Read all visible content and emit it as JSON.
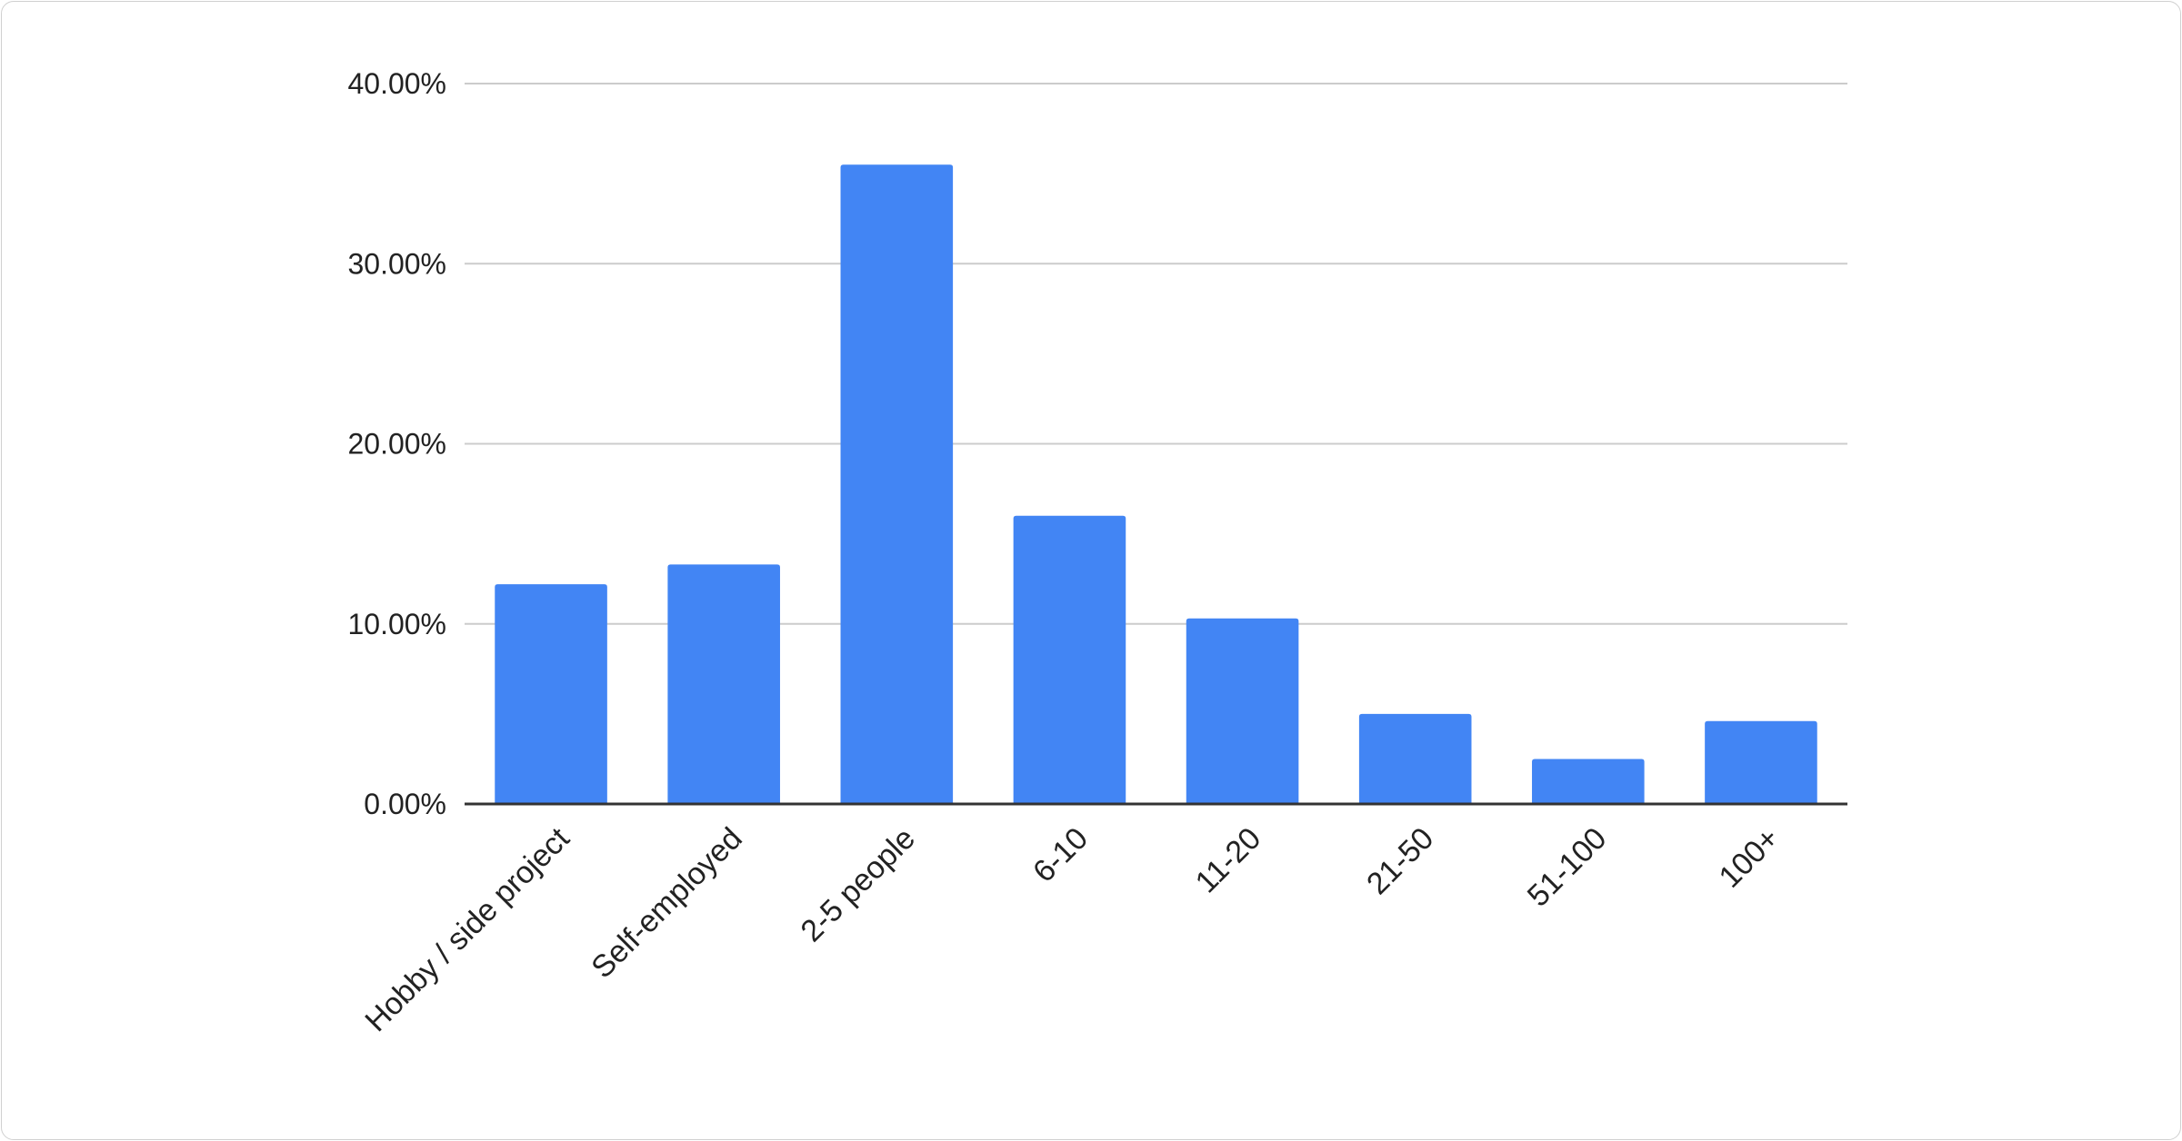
{
  "chart_data": {
    "type": "bar",
    "categories": [
      "Hobby / side project",
      "Self-employed",
      "2-5 people",
      "6-10",
      "11-20",
      "21-50",
      "51-100",
      "100+"
    ],
    "values": [
      12.2,
      13.3,
      35.5,
      16.0,
      10.3,
      5.0,
      2.5,
      4.6
    ],
    "title": "",
    "xlabel": "",
    "ylabel": "",
    "ylim": [
      0,
      40
    ],
    "yticks": [
      "0.00%",
      "10.00%",
      "20.00%",
      "30.00%",
      "40.00%"
    ],
    "grid": true,
    "legend": "none",
    "bar_color": "#4285f4"
  }
}
